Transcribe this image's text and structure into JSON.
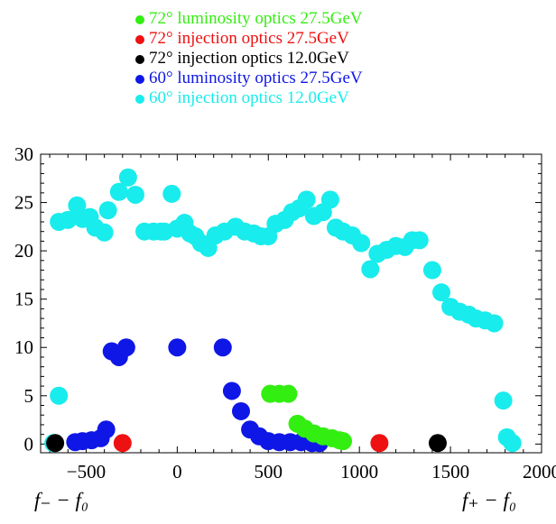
{
  "colors": {
    "green": "#33ee11",
    "red": "#ee1111",
    "black": "#000000",
    "blue": "#0f17e6",
    "cyan": "#18ecec"
  },
  "footer": {
    "left_label": "f₋ − f₀",
    "right_label": "f₊ − f₀"
  },
  "chart_data": {
    "type": "scatter",
    "xlim": [
      -750,
      2000
    ],
    "ylim": [
      -0.9,
      30
    ],
    "xticks": [
      -500,
      0,
      500,
      1000,
      1500,
      2000
    ],
    "xtick_labels": [
      "−500",
      "0",
      "500",
      "1000",
      "1500",
      "2000"
    ],
    "yticks": [
      0,
      5,
      10,
      15,
      20,
      25,
      30
    ],
    "ytick_labels": [
      "0",
      "5",
      "10",
      "15",
      "20",
      "25",
      "30"
    ],
    "legend_position": "top-center",
    "grid": false,
    "series": [
      {
        "name": "72° luminosity optics 27.5GeV",
        "color": "#33ee11",
        "points": [
          [
            510,
            5.2
          ],
          [
            560,
            5.2
          ],
          [
            610,
            5.2
          ],
          [
            660,
            2.1
          ],
          [
            700,
            1.6
          ],
          [
            750,
            1.1
          ],
          [
            800,
            0.8
          ],
          [
            850,
            0.6
          ],
          [
            890,
            0.4
          ],
          [
            910,
            0.3
          ]
        ]
      },
      {
        "name": "72° injection optics 27.5GeV",
        "color": "#ee1111",
        "points": [
          [
            -300,
            0.1
          ],
          [
            1110,
            0.1
          ]
        ]
      },
      {
        "name": "72° injection optics 12.0GeV",
        "color": "#000000",
        "points": [
          [
            -670,
            0.1
          ],
          [
            1430,
            0.1
          ]
        ]
      },
      {
        "name": "60° luminosity optics 27.5GeV",
        "color": "#0f17e6",
        "points": [
          [
            -560,
            0.2
          ],
          [
            -520,
            0.3
          ],
          [
            -470,
            0.4
          ],
          [
            -420,
            0.6
          ],
          [
            -390,
            1.5
          ],
          [
            -360,
            9.6
          ],
          [
            -320,
            9.0
          ],
          [
            -280,
            10.0
          ],
          [
            0,
            10.0
          ],
          [
            250,
            10.0
          ],
          [
            300,
            5.5
          ],
          [
            350,
            3.4
          ],
          [
            400,
            1.5
          ],
          [
            450,
            0.8
          ],
          [
            500,
            0.3
          ],
          [
            560,
            0.2
          ],
          [
            620,
            0.2
          ],
          [
            680,
            0.2
          ],
          [
            740,
            0.1
          ],
          [
            780,
            0.1
          ]
        ]
      },
      {
        "name": "60° injection optics 12.0GeV",
        "color": "#18ecec",
        "points": [
          [
            -680,
            0.1
          ],
          [
            -650,
            5.0
          ],
          [
            -650,
            23.0
          ],
          [
            -600,
            23.2
          ],
          [
            -550,
            24.7
          ],
          [
            -520,
            23.3
          ],
          [
            -480,
            23.5
          ],
          [
            -450,
            22.4
          ],
          [
            -400,
            21.9
          ],
          [
            -380,
            24.2
          ],
          [
            -320,
            26.1
          ],
          [
            -270,
            27.6
          ],
          [
            -230,
            25.8
          ],
          [
            -180,
            22.0
          ],
          [
            -130,
            22.0
          ],
          [
            -90,
            22.0
          ],
          [
            -70,
            22.0
          ],
          [
            -30,
            25.9
          ],
          [
            0,
            22.3
          ],
          [
            40,
            22.9
          ],
          [
            70,
            21.8
          ],
          [
            100,
            21.5
          ],
          [
            130,
            20.8
          ],
          [
            170,
            20.3
          ],
          [
            210,
            21.6
          ],
          [
            260,
            22.0
          ],
          [
            320,
            22.5
          ],
          [
            370,
            22.0
          ],
          [
            420,
            21.8
          ],
          [
            460,
            21.5
          ],
          [
            500,
            21.5
          ],
          [
            540,
            22.8
          ],
          [
            590,
            23.2
          ],
          [
            630,
            24.0
          ],
          [
            670,
            24.4
          ],
          [
            710,
            25.3
          ],
          [
            750,
            23.6
          ],
          [
            800,
            24.0
          ],
          [
            840,
            25.3
          ],
          [
            870,
            22.4
          ],
          [
            910,
            22.0
          ],
          [
            960,
            21.6
          ],
          [
            1010,
            20.8
          ],
          [
            1060,
            18.1
          ],
          [
            1100,
            19.7
          ],
          [
            1150,
            20.1
          ],
          [
            1200,
            20.5
          ],
          [
            1250,
            20.4
          ],
          [
            1290,
            21.1
          ],
          [
            1330,
            21.1
          ],
          [
            1400,
            18.0
          ],
          [
            1450,
            15.7
          ],
          [
            1500,
            14.2
          ],
          [
            1550,
            13.7
          ],
          [
            1600,
            13.4
          ],
          [
            1640,
            13.0
          ],
          [
            1690,
            12.8
          ],
          [
            1740,
            12.5
          ],
          [
            1790,
            4.5
          ],
          [
            1810,
            0.7
          ],
          [
            1840,
            0.1
          ]
        ]
      }
    ]
  }
}
